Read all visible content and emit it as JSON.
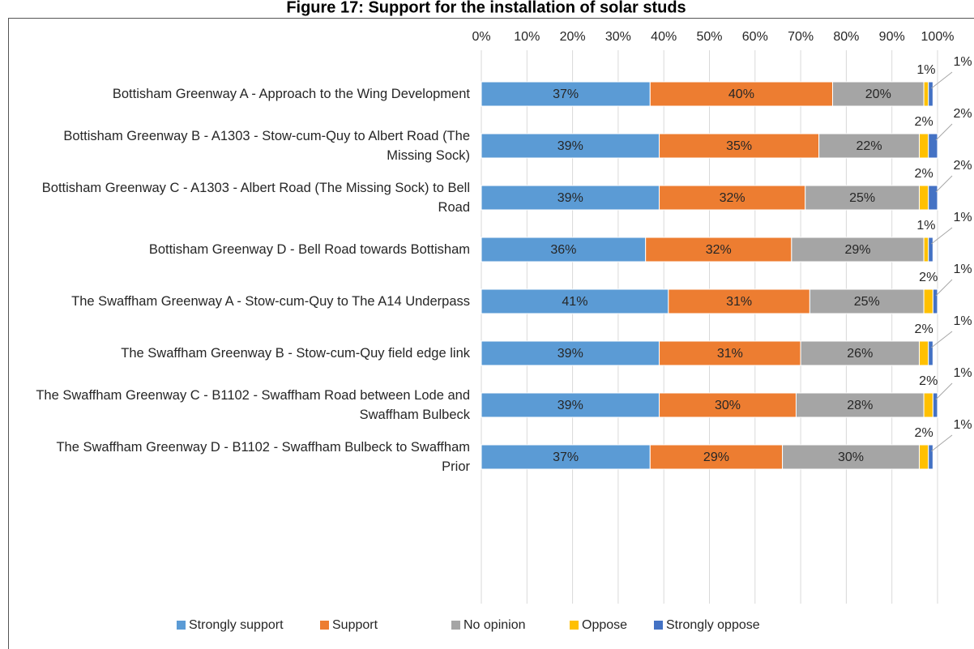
{
  "chart_data": {
    "type": "stacked_barh",
    "title": "Figure 17: Support for the installation of solar studs",
    "categories": [
      "Bottisham Greenway A - Approach to the Wing Development",
      "Bottisham Greenway B - A1303 - Stow-cum-Quy to Albert Road (The Missing Sock)",
      "Bottisham Greenway C - A1303 - Albert Road (The Missing Sock) to Bell Road",
      "Bottisham Greenway D - Bell Road towards Bottisham",
      "The Swaffham Greenway A - Stow-cum-Quy to The A14 Underpass",
      "The Swaffham Greenway B - Stow-cum-Quy field edge link",
      "The Swaffham Greenway C - B1102 - Swaffham Road between Lode and Swaffham Bulbeck",
      "The Swaffham Greenway D - B1102 - Swaffham Bulbeck to Swaffham Prior"
    ],
    "series": [
      {
        "name": "Strongly support",
        "color": "#5b9bd5",
        "values": [
          37,
          39,
          39,
          36,
          41,
          39,
          39,
          37
        ],
        "value_labels": [
          "37%",
          "39%",
          "39%",
          "36%",
          "41%",
          "39%",
          "39%",
          "37%"
        ]
      },
      {
        "name": "Support",
        "color": "#ed7d31",
        "values": [
          40,
          35,
          32,
          32,
          31,
          31,
          30,
          29
        ],
        "value_labels": [
          "40%",
          "35%",
          "32%",
          "32%",
          "31%",
          "31%",
          "30%",
          "29%"
        ]
      },
      {
        "name": "No opinion",
        "color": "#a5a5a5",
        "values": [
          20,
          22,
          25,
          29,
          25,
          26,
          28,
          30
        ],
        "value_labels": [
          "20%",
          "22%",
          "25%",
          "29%",
          "25%",
          "26%",
          "28%",
          "30%"
        ]
      },
      {
        "name": "Oppose",
        "color": "#ffc000",
        "values": [
          1,
          2,
          2,
          1,
          2,
          2,
          2,
          2
        ],
        "value_labels": [
          "1%",
          "2%",
          "2%",
          "1%",
          "2%",
          "2%",
          "2%",
          "2%"
        ]
      },
      {
        "name": "Strongly oppose",
        "color": "#4472c4",
        "values": [
          1,
          2,
          2,
          1,
          1,
          1,
          1,
          1
        ],
        "value_labels": [
          "1%",
          "2%",
          "2%",
          "1%",
          "1%",
          "1%",
          "1%",
          "1%"
        ]
      }
    ],
    "xlim": [
      0,
      100
    ],
    "xticks": [
      {
        "value": 0,
        "label": "0%"
      },
      {
        "value": 10,
        "label": "10%"
      },
      {
        "value": 20,
        "label": "20%"
      },
      {
        "value": 30,
        "label": "30%"
      },
      {
        "value": 40,
        "label": "40%"
      },
      {
        "value": 50,
        "label": "50%"
      },
      {
        "value": 60,
        "label": "60%"
      },
      {
        "value": 70,
        "label": "70%"
      },
      {
        "value": 80,
        "label": "80%"
      },
      {
        "value": 90,
        "label": "90%"
      },
      {
        "value": 100,
        "label": "100%"
      }
    ],
    "grid": true,
    "legend": "bottom"
  }
}
